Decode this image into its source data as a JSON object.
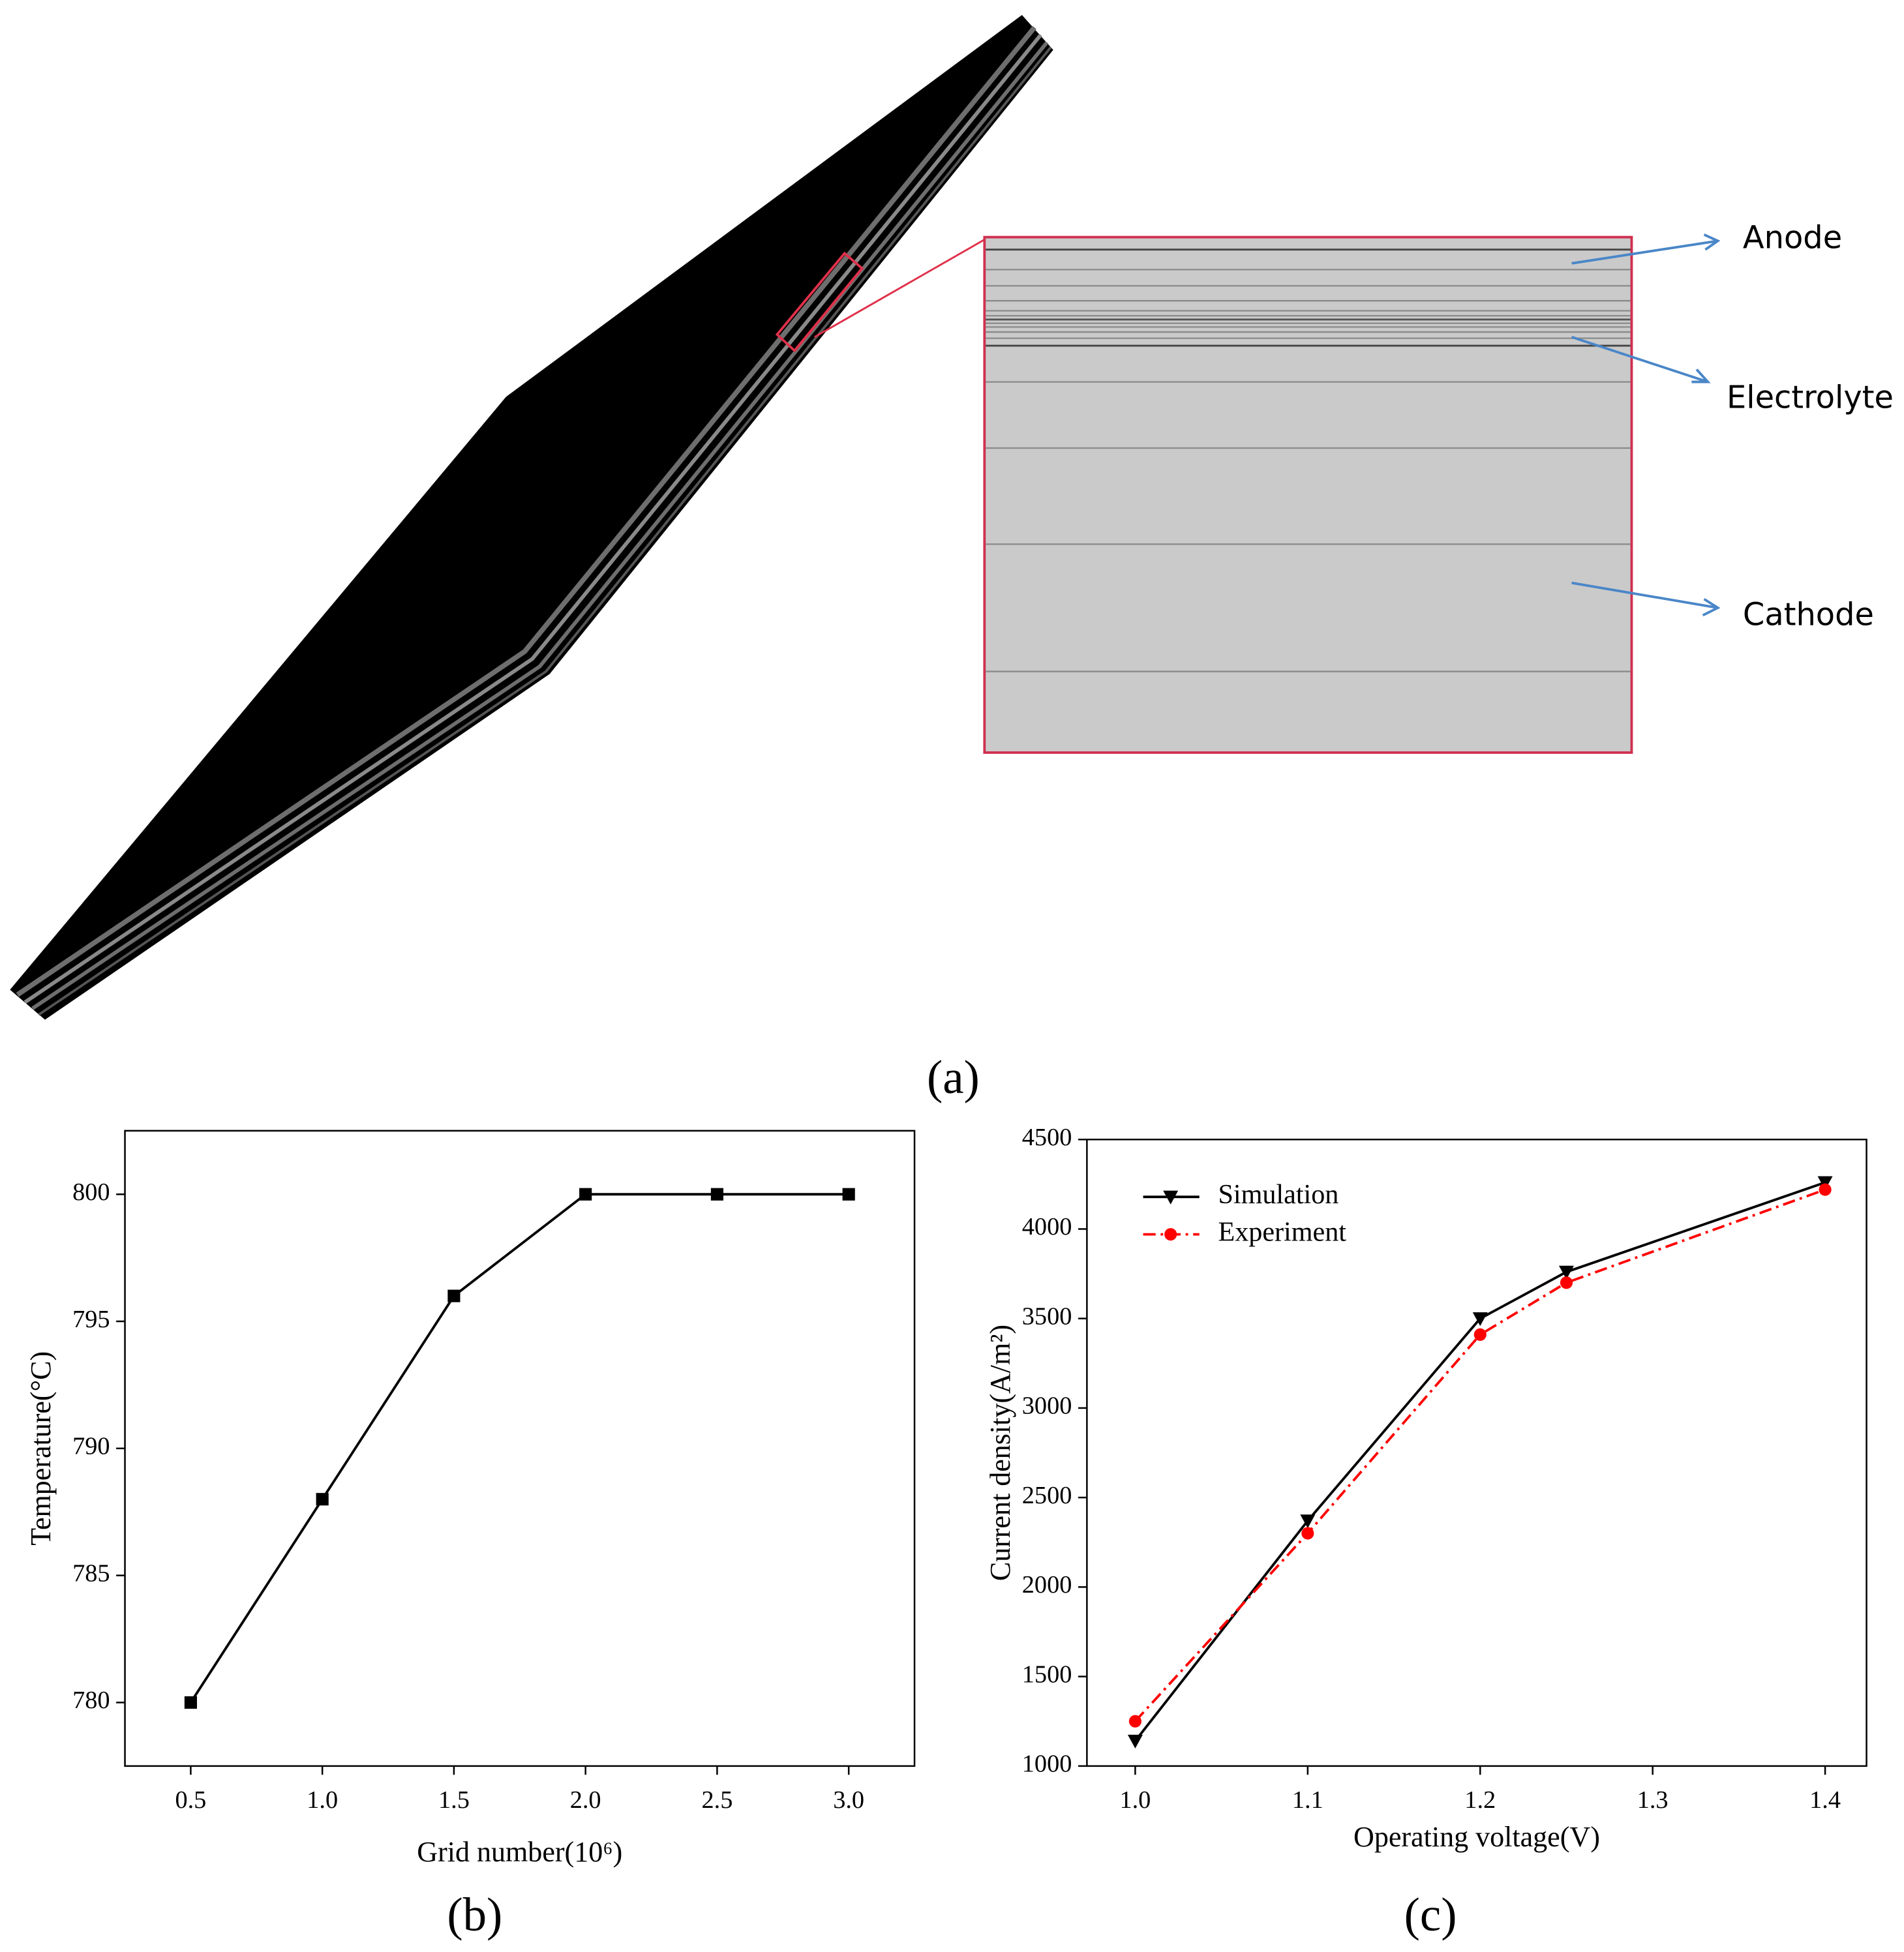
{
  "diagram": {
    "panel_label": "(a)",
    "anode": "Anode",
    "electrolyte": "Electrolyte",
    "cathode": "Cathode"
  },
  "chart_data": [
    {
      "type": "line",
      "panel_label": "(b)",
      "x_label": "Grid number(10⁶)",
      "y_label": "Temperature(°C)",
      "x": [
        0.5,
        1.0,
        1.5,
        2.0,
        2.5,
        3.0
      ],
      "values": [
        780,
        788,
        796,
        800,
        800,
        800
      ],
      "color": "#000000",
      "marker": "square",
      "linestyle": "solid",
      "xlim": [
        0.25,
        3.25
      ],
      "ylim": [
        777.5,
        802.5
      ],
      "xticks": [
        0.5,
        {
          "value": 1,
          "label": "1.0"
        },
        1.5,
        {
          "value": 2,
          "label": "2.0"
        },
        2.5,
        {
          "value": 3,
          "label": "3.0"
        }
      ],
      "yticks": [
        780,
        785,
        790,
        795,
        800
      ]
    },
    {
      "type": "line",
      "panel_label": "(c)",
      "x_label": "Operating voltage(V)",
      "y_label": "Current density(A/m²)",
      "x": [
        1.0,
        1.1,
        1.2,
        1.25,
        1.4
      ],
      "series": [
        {
          "name": "Simulation",
          "color": "#000000",
          "marker": "triangle-down",
          "linestyle": "solid",
          "values": [
            1140,
            2370,
            3500,
            3760,
            4260
          ]
        },
        {
          "name": "Experiment",
          "color": "#ff0000",
          "marker": "circle",
          "linestyle": "dashdot",
          "values": [
            1250,
            2300,
            3410,
            3700,
            4220
          ]
        }
      ],
      "xlim": [
        0.972,
        1.424
      ],
      "ylim": [
        1000,
        4500
      ],
      "xticks": [
        {
          "value": 1,
          "label": "1.0"
        },
        1.1,
        1.2,
        1.3,
        1.4
      ],
      "yticks": [
        1000,
        1500,
        2000,
        2500,
        3000,
        3500,
        4000,
        4500
      ],
      "legend": "upper left"
    }
  ]
}
